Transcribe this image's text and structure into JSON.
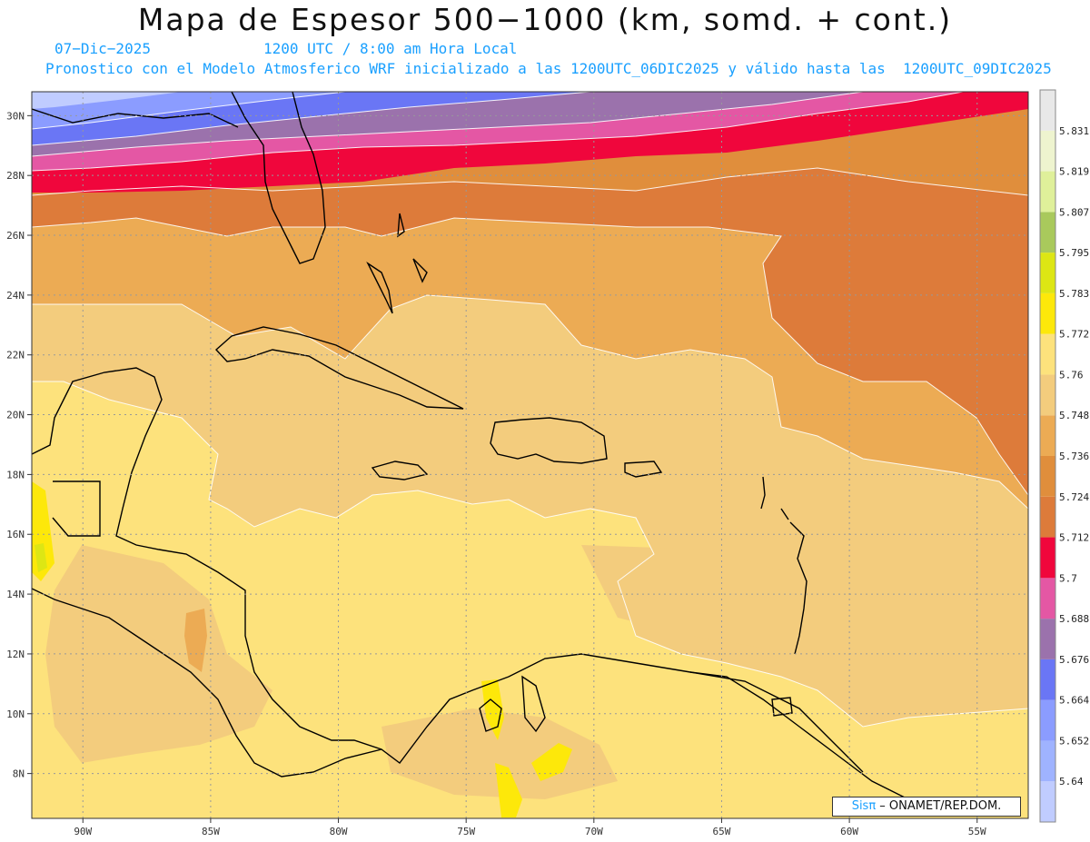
{
  "header": {
    "title": "Mapa de Espesor 500−1000 (km, somd. + cont.)",
    "date": "07−Dic−2025",
    "time": "1200 UTC / 8:00 am Hora Local",
    "description": "Pronostico con el Modelo Atmosferico WRF inicializado a las 1200UTC_06DIC2025 y válido hasta las  1200UTC_09DIC2025"
  },
  "map": {
    "lon_range": [
      -92,
      -53
    ],
    "lat_range": [
      6.5,
      30.8
    ],
    "lon_ticks": [
      {
        "value": -90,
        "label": "90W"
      },
      {
        "value": -85,
        "label": "85W"
      },
      {
        "value": -80,
        "label": "80W"
      },
      {
        "value": -75,
        "label": "75W"
      },
      {
        "value": -70,
        "label": "70W"
      },
      {
        "value": -65,
        "label": "65W"
      },
      {
        "value": -60,
        "label": "60W"
      },
      {
        "value": -55,
        "label": "55W"
      }
    ],
    "lat_ticks": [
      {
        "value": 8,
        "label": "8N"
      },
      {
        "value": 10,
        "label": "10N"
      },
      {
        "value": 12,
        "label": "12N"
      },
      {
        "value": 14,
        "label": "14N"
      },
      {
        "value": 16,
        "label": "16N"
      },
      {
        "value": 18,
        "label": "18N"
      },
      {
        "value": 20,
        "label": "20N"
      },
      {
        "value": 22,
        "label": "22N"
      },
      {
        "value": 24,
        "label": "24N"
      },
      {
        "value": 26,
        "label": "26N"
      },
      {
        "value": 28,
        "label": "28N"
      },
      {
        "value": 30,
        "label": "30N"
      }
    ]
  },
  "colorbar": {
    "colors": [
      "#c0ccff",
      "#9fb3ff",
      "#8b9cff",
      "#6a76f5",
      "#9b72ac",
      "#e457a4",
      "#f0063c",
      "#dd7b3a",
      "#e08e3c",
      "#ecab54",
      "#f3cc7d",
      "#fde27c",
      "#fde80a",
      "#dde614",
      "#a9c95c",
      "#dff09a",
      "#eef4cf",
      "#e8e8e8"
    ],
    "labels": [
      "5.64",
      "5.652",
      "5.664",
      "5.676",
      "5.688",
      "5.7",
      "5.712",
      "5.724",
      "5.736",
      "5.748",
      "5.76",
      "5.772",
      "5.783",
      "5.795",
      "5.807",
      "5.819",
      "5.831"
    ]
  },
  "credit": {
    "sis": "Sisπ",
    "text": " – ONAMET/REP.DOM."
  }
}
